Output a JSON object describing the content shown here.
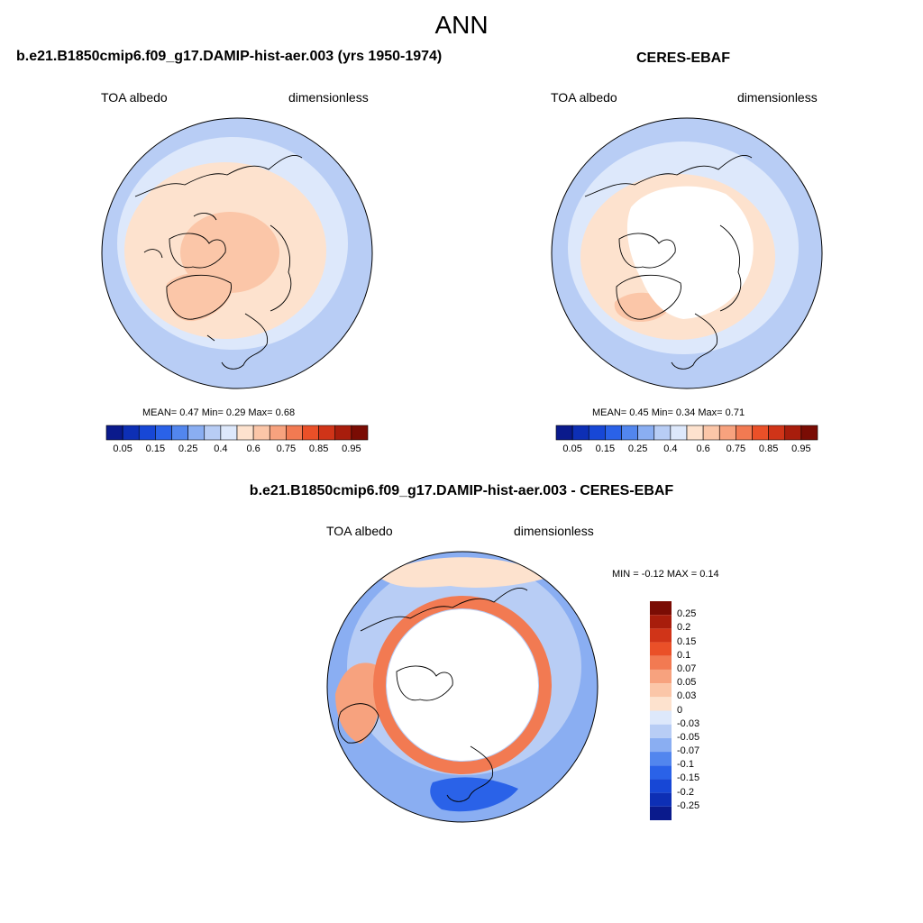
{
  "title": "ANN",
  "panels": [
    {
      "title": "b.e21.B1850cmip6.f09_g17.DAMIP-hist-aer.003 (yrs 1950-1974)",
      "left_label": "TOA albedo",
      "right_label": "dimensionless",
      "stats": "MEAN=   0.47   Min=    0.29   Max=    0.68",
      "colorbar": {
        "ticks": [
          "0.05",
          "0.15",
          "0.25",
          "0.4",
          "0.6",
          "0.75",
          "0.85",
          "0.95"
        ],
        "colors": [
          "#0a1a8c",
          "#0d2fb5",
          "#1747d6",
          "#2a62e8",
          "#5286ee",
          "#8aaef2",
          "#b8cdf5",
          "#dde8fb",
          "#fde2ce",
          "#fbc6a8",
          "#f7a27e",
          "#f27a52",
          "#ea5028",
          "#d03418",
          "#a81d0c",
          "#7a0c04"
        ]
      }
    },
    {
      "title": "CERES-EBAF",
      "left_label": "TOA albedo",
      "right_label": "dimensionless",
      "stats": "MEAN=   0.45   Min=    0.34   Max=    0.71",
      "colorbar": {
        "ticks": [
          "0.05",
          "0.15",
          "0.25",
          "0.4",
          "0.6",
          "0.75",
          "0.85",
          "0.95"
        ],
        "colors": [
          "#0a1a8c",
          "#0d2fb5",
          "#1747d6",
          "#2a62e8",
          "#5286ee",
          "#8aaef2",
          "#b8cdf5",
          "#dde8fb",
          "#fde2ce",
          "#fbc6a8",
          "#f7a27e",
          "#f27a52",
          "#ea5028",
          "#d03418",
          "#a81d0c",
          "#7a0c04"
        ]
      }
    },
    {
      "title": "b.e21.B1850cmip6.f09_g17.DAMIP-hist-aer.003 - CERES-EBAF",
      "left_label": "TOA albedo",
      "right_label": "dimensionless",
      "stats": "MIN =  -0.12 MAX =   0.14",
      "colorbar": {
        "ticks": [
          "0.25",
          "0.2",
          "0.15",
          "0.1",
          "0.07",
          "0.05",
          "0.03",
          "0",
          "-0.03",
          "-0.05",
          "-0.07",
          "-0.1",
          "-0.15",
          "-0.2",
          "-0.25"
        ],
        "colors": [
          "#7a0c04",
          "#a81d0c",
          "#d03418",
          "#ea5028",
          "#f27a52",
          "#f7a27e",
          "#fbc6a8",
          "#fde2ce",
          "#dde8fb",
          "#b8cdf5",
          "#8aaef2",
          "#5286ee",
          "#2a62e8",
          "#1747d6",
          "#0d2fb5",
          "#0a1a8c"
        ]
      }
    }
  ],
  "map_colors": {
    "ocean_low": "#b8cdf5",
    "ocean_mid": "#dde8fb",
    "land_bright": "#fbc6a8",
    "land_mid": "#fde2ce",
    "diff_pos": "#f27a52",
    "diff_neg": "#5286ee",
    "missing": "#ffffff",
    "coast": "#000000"
  }
}
